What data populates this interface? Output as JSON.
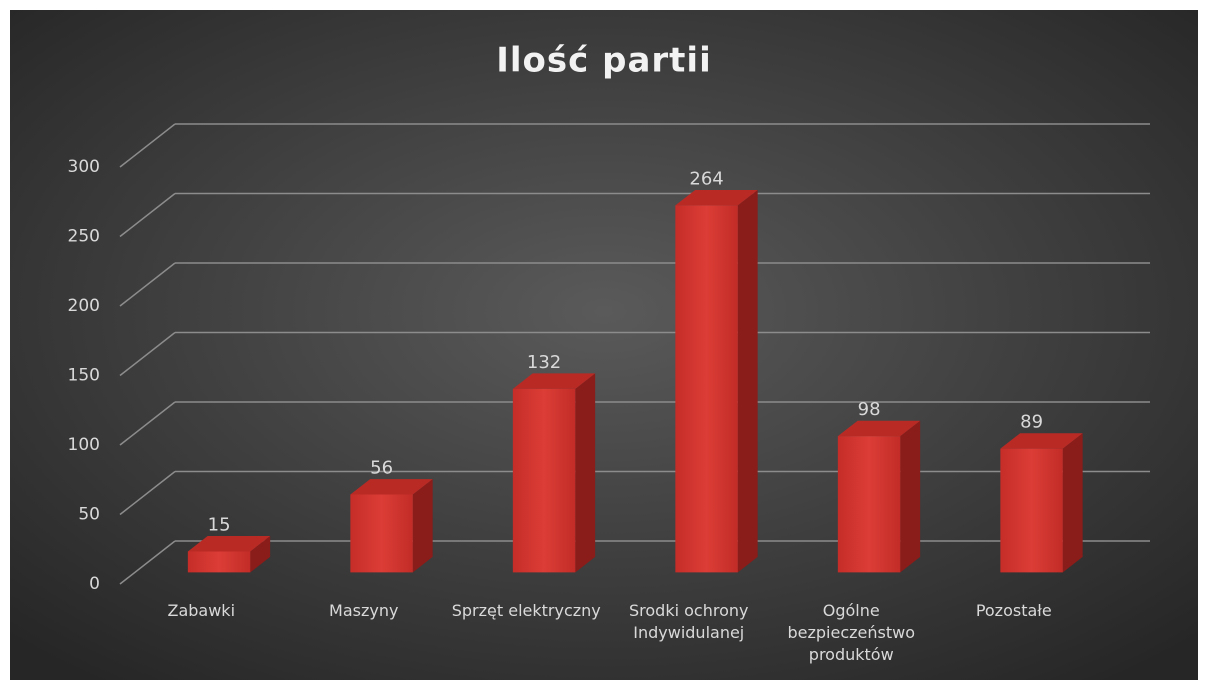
{
  "chart_data": {
    "type": "bar3d",
    "title": "Ilość partii",
    "categories": [
      "Zabawki",
      "Maszyny",
      "Sprzęt elektryczny",
      "Srodki ochrony Indywidulanej",
      "Ogólne bezpieczeństwo produktów",
      "Pozostałe"
    ],
    "values": [
      15,
      56,
      132,
      264,
      98,
      89
    ],
    "color": "#d0342f",
    "ylim": [
      0,
      300
    ],
    "yticks": [
      0,
      50,
      100,
      150,
      200,
      250,
      300
    ],
    "grid": true
  }
}
